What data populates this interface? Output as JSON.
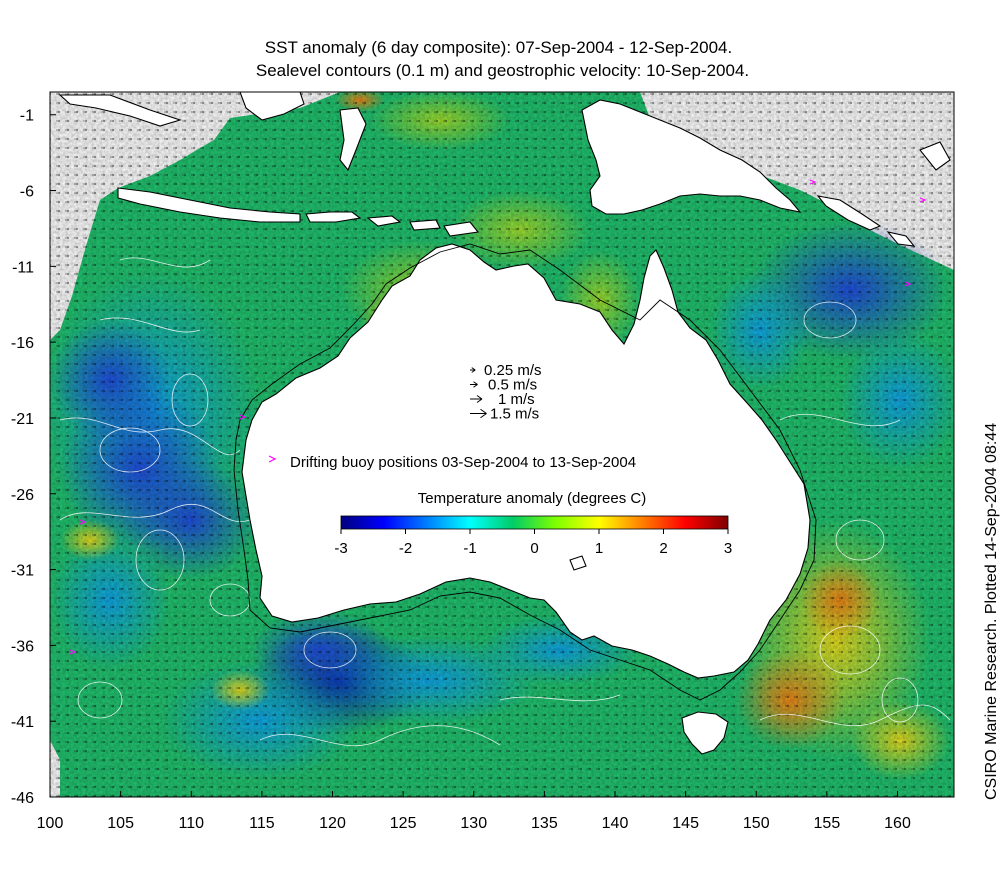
{
  "title": {
    "line1": "SST anomaly (6 day composite): 07-Sep-2004 - 12-Sep-2004.",
    "line2": "Sealevel contours (0.1 m) and geostrophic velocity: 10-Sep-2004."
  },
  "side_label": "CSIRO Marine Research. Plotted 14-Sep-2004 08:44",
  "axes": {
    "x_ticks": [
      "100",
      "105",
      "110",
      "115",
      "120",
      "125",
      "130",
      "135",
      "140",
      "145",
      "150",
      "155",
      "160"
    ],
    "y_ticks": [
      "-1",
      "-6",
      "-11",
      "-16",
      "-21",
      "-26",
      "-31",
      "-36",
      "-41",
      "-46"
    ],
    "xlim": [
      100,
      164
    ],
    "ylim": [
      -46,
      0.5
    ]
  },
  "velocity_key": [
    {
      "label": "0.25 m/s",
      "speed": 0.25
    },
    {
      "label": "0.5 m/s",
      "speed": 0.5
    },
    {
      "label": "1 m/s",
      "speed": 1
    },
    {
      "label": "1.5 m/s",
      "speed": 1.5
    }
  ],
  "buoy_legend": {
    "label": "Drifting buoy positions 03-Sep-2004 to 13-Sep-2004",
    "color": "#ff00ff"
  },
  "colorbar": {
    "title": "Temperature anomaly (degrees C)",
    "min": -3,
    "max": 3,
    "tick_labels": [
      "-3",
      "-2",
      "-1",
      "0",
      "1",
      "2",
      "3"
    ],
    "colors": [
      "#00007f",
      "#0000ff",
      "#007fff",
      "#00ffff",
      "#00cc66",
      "#7fff00",
      "#ffff00",
      "#ff7f00",
      "#ff0000",
      "#7f0000"
    ]
  },
  "chart_data": {
    "type": "heatmap",
    "title": "SST anomaly (6 day composite): 07-Sep-2004 - 12-Sep-2004.",
    "subtitle": "Sealevel contours (0.1 m) and geostrophic velocity: 10-Sep-2004.",
    "xlabel": "",
    "ylabel": "",
    "xlim": [
      100,
      164
    ],
    "ylim": [
      -46,
      0.5
    ],
    "value_range": [
      -3,
      3
    ],
    "regions": [
      {
        "lon": [
          100,
          115
        ],
        "lat": [
          -46,
          -14
        ],
        "anomaly": -1.3
      },
      {
        "lon": [
          104,
          112
        ],
        "lat": [
          -32,
          -20
        ],
        "anomaly": -2.0
      },
      {
        "lon": [
          116,
          125
        ],
        "lat": [
          -41,
          -36
        ],
        "anomaly": -2.5
      },
      {
        "lon": [
          148,
          160
        ],
        "lat": [
          -42,
          -30
        ],
        "anomaly": 1.5
      },
      {
        "lon": [
          153,
          157
        ],
        "lat": [
          -36,
          -32
        ],
        "anomaly": 2.3
      },
      {
        "lon": [
          146,
          152
        ],
        "lat": [
          -42,
          -38
        ],
        "anomaly": 1.8
      },
      {
        "lon": [
          120,
          128
        ],
        "lat": [
          -18,
          -12
        ],
        "anomaly": 0.9
      },
      {
        "lon": [
          125,
          132
        ],
        "lat": [
          -4,
          -1
        ],
        "anomaly": 0.8
      },
      {
        "lon": [
          150,
          164
        ],
        "lat": [
          -16,
          -10
        ],
        "anomaly": -1.5
      },
      {
        "lon": [
          135,
          145
        ],
        "lat": [
          -8,
          -4
        ],
        "anomaly": 0.3
      }
    ]
  }
}
